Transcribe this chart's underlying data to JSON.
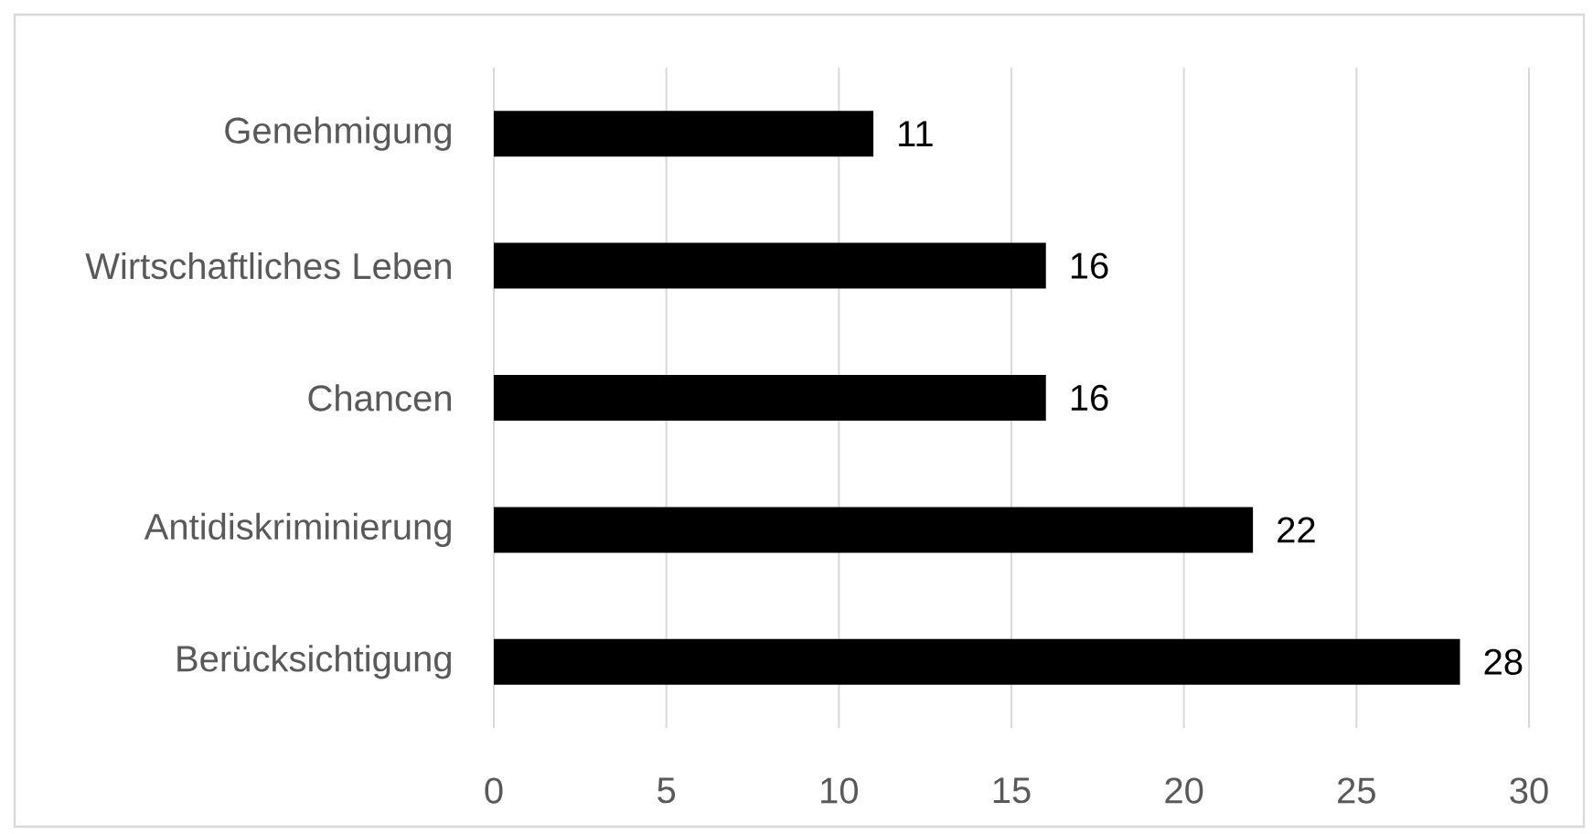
{
  "chart_data": {
    "type": "bar",
    "orientation": "horizontal",
    "categories": [
      "Genehmigung",
      "Wirtschaftliches Leben",
      "Chancen",
      "Antidiskriminierung",
      "Berücksichtigung"
    ],
    "values": [
      11,
      16,
      16,
      22,
      28
    ],
    "color": "#000000",
    "xlim": [
      0,
      30
    ],
    "xticks": [
      0,
      5,
      10,
      15,
      20,
      25,
      30
    ],
    "grid": "x",
    "data_labels": true
  }
}
